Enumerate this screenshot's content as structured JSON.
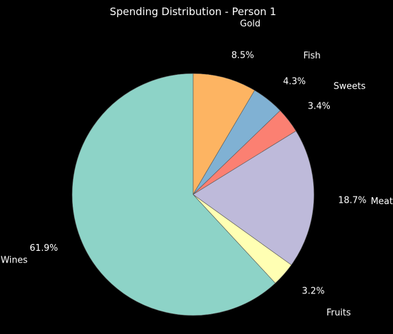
{
  "chart_data": {
    "type": "pie",
    "title": "Spending Distribution - Person 1",
    "start_angle_deg": 90,
    "direction": "clockwise",
    "slices": [
      {
        "label": "Gold",
        "pct_label": "8.5%",
        "value": 8.5,
        "color": "#fdb462"
      },
      {
        "label": "Fish",
        "pct_label": "4.3%",
        "value": 4.3,
        "color": "#80b1d3"
      },
      {
        "label": "Sweets",
        "pct_label": "3.4%",
        "value": 3.4,
        "color": "#fb8072"
      },
      {
        "label": "Meat",
        "pct_label": "18.7%",
        "value": 18.7,
        "color": "#bebada"
      },
      {
        "label": "Fruits",
        "pct_label": "3.2%",
        "value": 3.2,
        "color": "#ffffb3"
      },
      {
        "label": "Wines",
        "pct_label": "61.9%",
        "value": 61.9,
        "color": "#8dd3c7"
      }
    ],
    "background": "#000000",
    "edge_color": "#555555"
  }
}
